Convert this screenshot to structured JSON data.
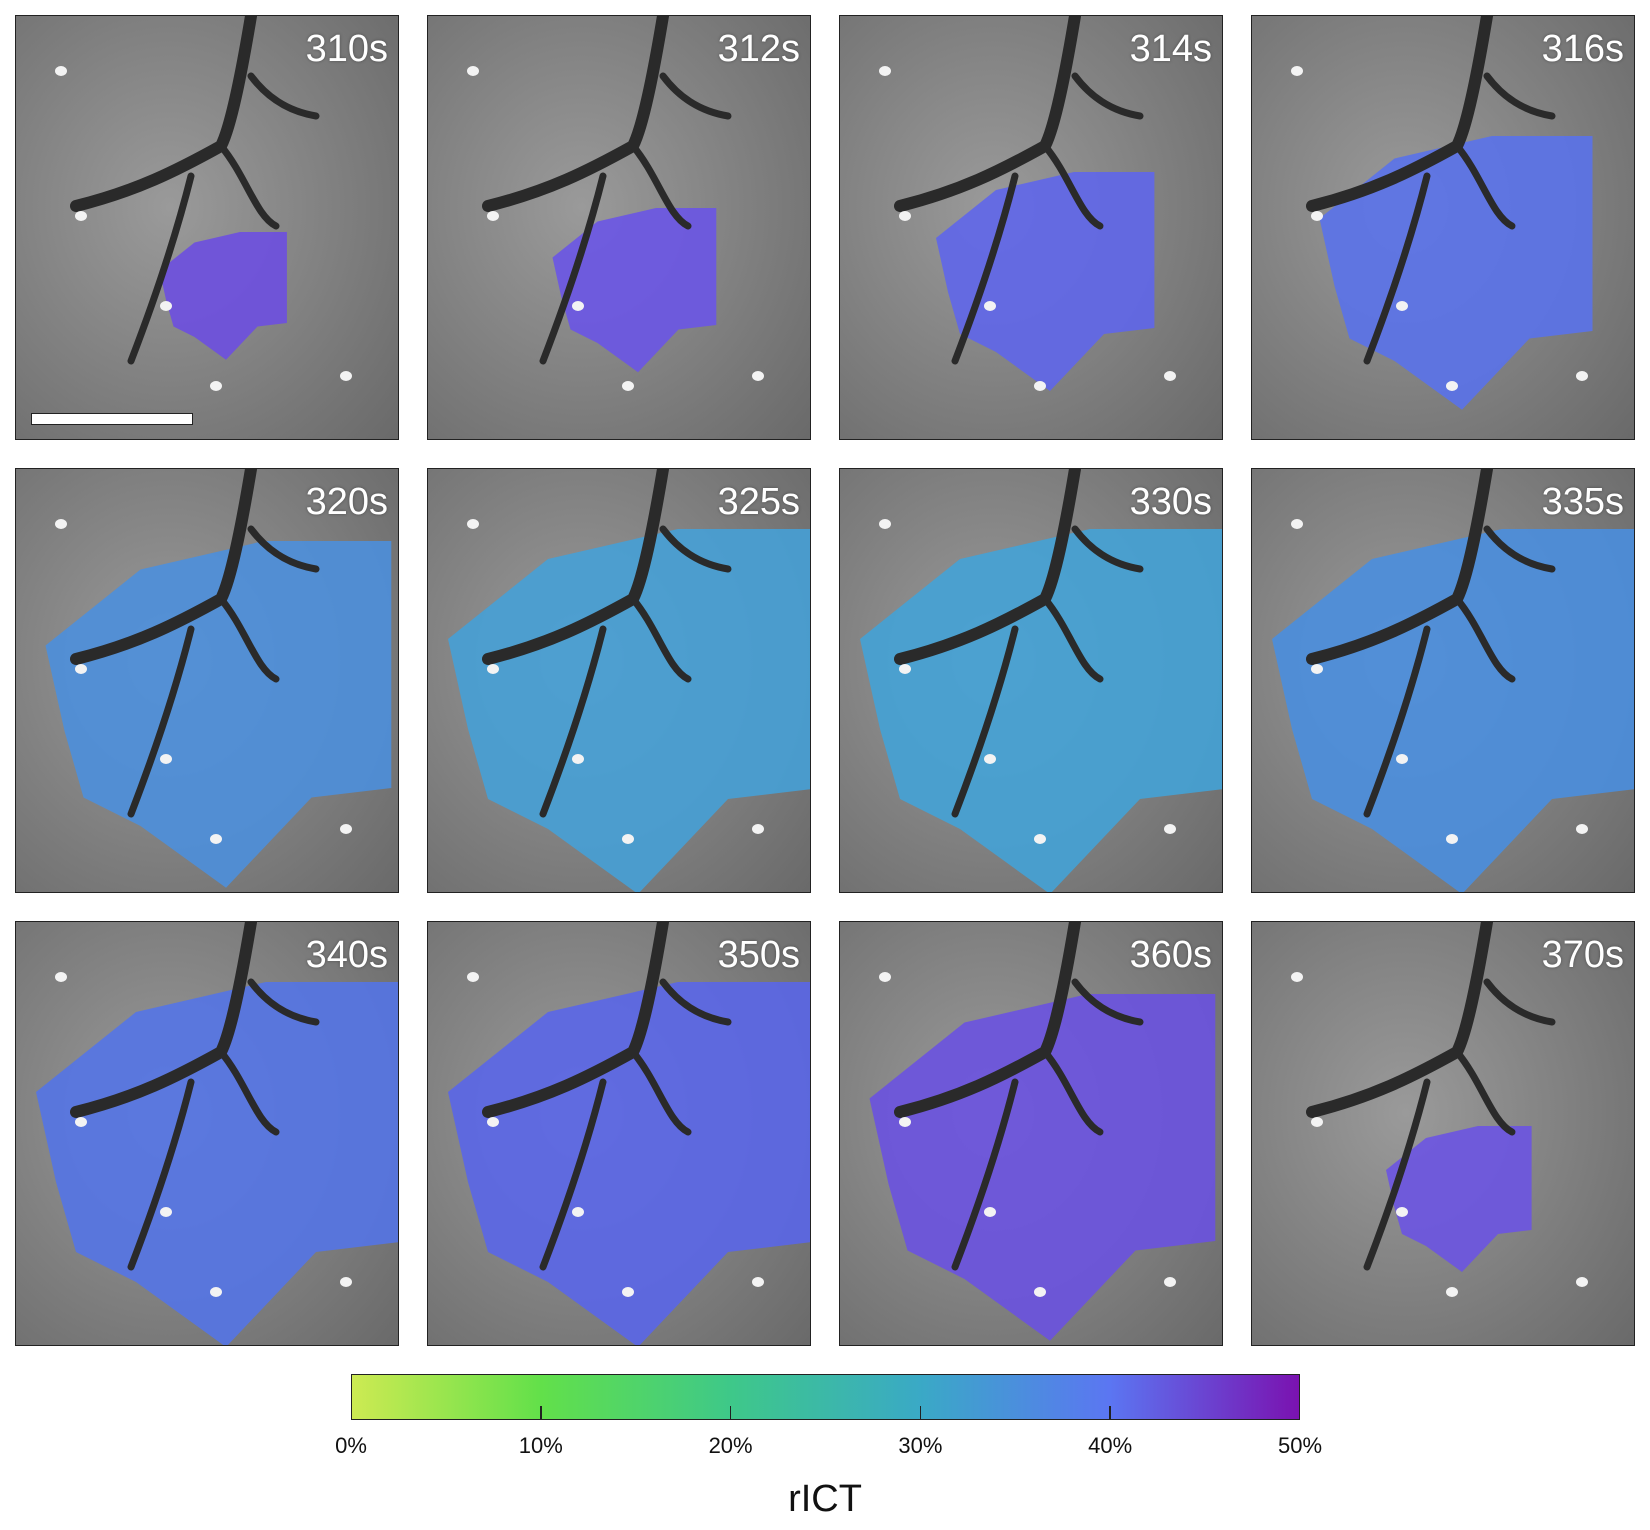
{
  "panels": [
    {
      "label": "310s",
      "coverage": 0.35,
      "tint": "#6d4fe0"
    },
    {
      "label": "312s",
      "coverage": 0.45,
      "tint": "#6a55e6"
    },
    {
      "label": "314s",
      "coverage": 0.6,
      "tint": "#5f66ea"
    },
    {
      "label": "316s",
      "coverage": 0.75,
      "tint": "#5a72ea"
    },
    {
      "label": "320s",
      "coverage": 0.95,
      "tint": "#4c8fdc"
    },
    {
      "label": "325s",
      "coverage": 1.0,
      "tint": "#46a0d6"
    },
    {
      "label": "330s",
      "coverage": 1.0,
      "tint": "#44a2d6"
    },
    {
      "label": "335s",
      "coverage": 1.0,
      "tint": "#4a8ede"
    },
    {
      "label": "340s",
      "coverage": 1.0,
      "tint": "#5474e6"
    },
    {
      "label": "350s",
      "coverage": 1.0,
      "tint": "#5a66e8"
    },
    {
      "label": "360s",
      "coverage": 0.95,
      "tint": "#6a52e0"
    },
    {
      "label": "370s",
      "coverage": 0.4,
      "tint": "#6b54e2"
    }
  ],
  "colorbar": {
    "title": "rICT",
    "ticks": [
      "0%",
      "10%",
      "20%",
      "30%",
      "40%",
      "50%"
    ],
    "colors": [
      "#cdea52",
      "#62e04a",
      "#3ec889",
      "#3aa9c6",
      "#5b76f2",
      "#7a12b0"
    ]
  }
}
